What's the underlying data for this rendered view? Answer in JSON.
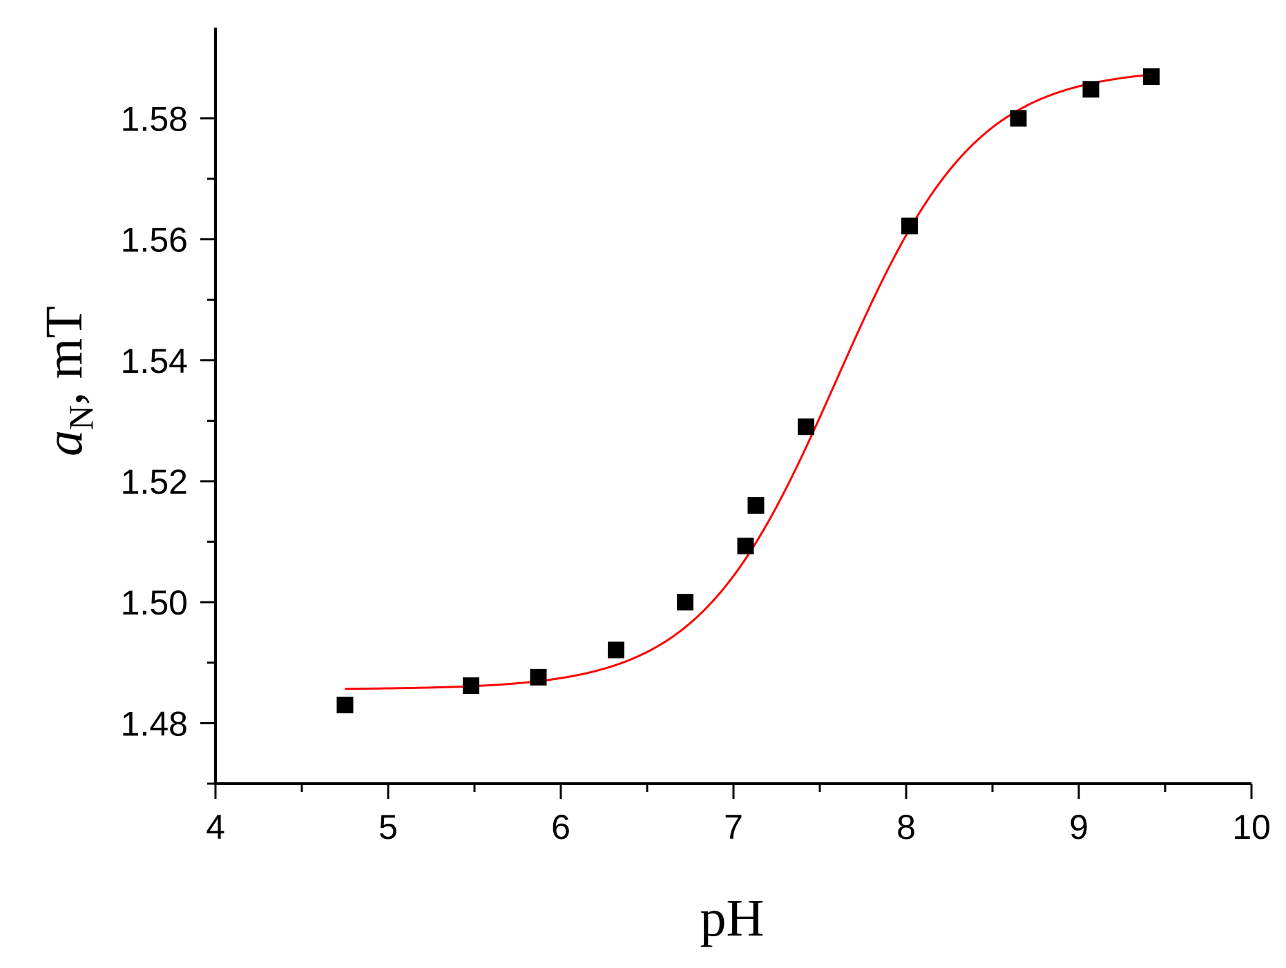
{
  "chart_data": {
    "type": "scatter",
    "xlabel": "pH",
    "ylabel": {
      "symbol": "a",
      "subscript": "N",
      "rest": ", mT"
    },
    "xlim": [
      4,
      10
    ],
    "ylim": [
      1.47,
      1.595
    ],
    "x_ticks": [
      "4",
      "5",
      "6",
      "7",
      "8",
      "9",
      "10"
    ],
    "y_ticks": [
      "1.48",
      "1.50",
      "1.52",
      "1.54",
      "1.56",
      "1.58"
    ],
    "series": [
      {
        "kind": "points",
        "marker": "square",
        "color": "#000000",
        "x": [
          4.75,
          5.48,
          5.87,
          6.32,
          6.72,
          7.07,
          7.13,
          7.42,
          8.02,
          8.65,
          9.07,
          9.42
        ],
        "y": [
          1.483,
          1.4862,
          1.4876,
          1.4921,
          1.5,
          1.5093,
          1.516,
          1.529,
          1.5622,
          1.58,
          1.5848,
          1.5869
        ]
      },
      {
        "kind": "fit-line",
        "color": "#ff0000",
        "model": "sigmoid",
        "params": {
          "bottom": 1.4856,
          "top": 1.5883,
          "x0": 7.6,
          "slope": 0.4
        },
        "x_range": [
          4.75,
          9.42
        ]
      }
    ],
    "grid": false,
    "legend": "none"
  }
}
